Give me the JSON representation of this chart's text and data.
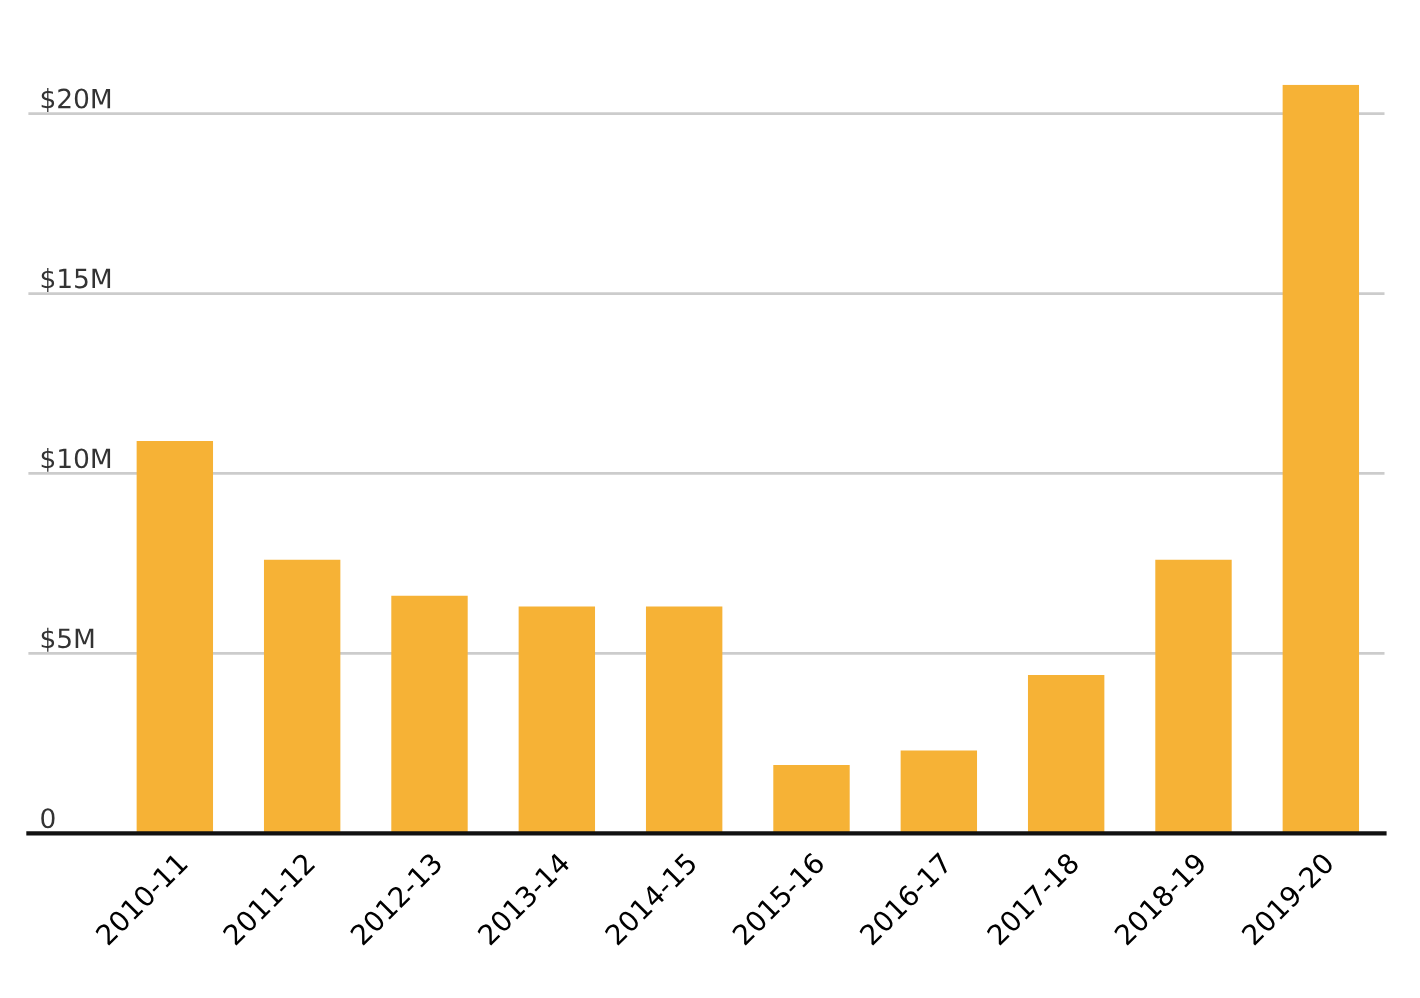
{
  "chart_data": {
    "type": "bar",
    "categories": [
      "2010-11",
      "2011-12",
      "2012-13",
      "2013-14",
      "2014-15",
      "2015-16",
      "2016-17",
      "2017-18",
      "2018-19",
      "2019-20"
    ],
    "values": [
      10.9,
      7.6,
      6.6,
      6.3,
      6.3,
      1.9,
      2.3,
      4.4,
      7.6,
      20.8
    ],
    "color": "#f6b236",
    "ylim": [
      0,
      20.8
    ],
    "yticks": [
      {
        "value": 0,
        "label": "0"
      },
      {
        "value": 5,
        "label": "$5M"
      },
      {
        "value": 10,
        "label": "$10M"
      },
      {
        "value": 15,
        "label": "$15M"
      },
      {
        "value": 20,
        "label": "$20M"
      }
    ],
    "grid": "y"
  }
}
